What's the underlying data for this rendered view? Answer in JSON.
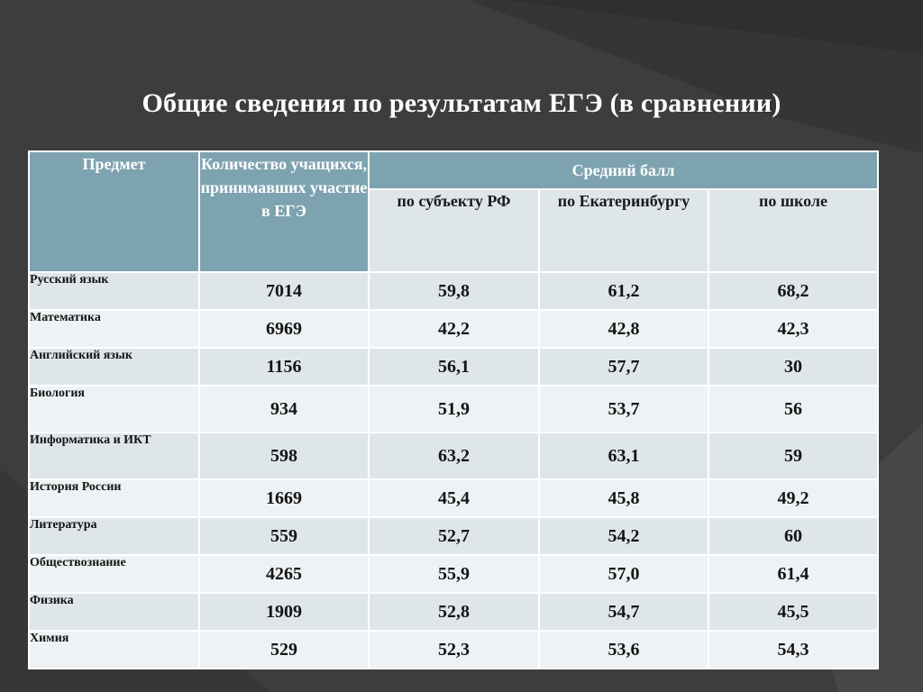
{
  "title": "Общие сведения по результатам ЕГЭ (в сравнении)",
  "table": {
    "headers": {
      "subject": "Предмет",
      "count": "Количество учащихся, принимавших участие в ЕГЭ",
      "avg_group": "Средний балл",
      "region": "по субъекту РФ",
      "city": "по Екатеринбургу",
      "school": "по школе"
    },
    "rows": [
      {
        "subject": "Русский язык",
        "count": "7014",
        "region": "59,8",
        "city": "61,2",
        "school": "68,2"
      },
      {
        "subject": "Математика",
        "count": "6969",
        "region": "42,2",
        "city": "42,8",
        "school": "42,3"
      },
      {
        "subject": "Английский язык",
        "count": "1156",
        "region": "56,1",
        "city": "57,7",
        "school": "30"
      },
      {
        "subject": "Биология",
        "count": "934",
        "region": "51,9",
        "city": "53,7",
        "school": "56"
      },
      {
        "subject": "Информатика и ИКТ",
        "count": "598",
        "region": "63,2",
        "city": "63,1",
        "school": "59"
      },
      {
        "subject": "История России",
        "count": "1669",
        "region": "45,4",
        "city": "45,8",
        "school": "49,2"
      },
      {
        "subject": "Литература",
        "count": "559",
        "region": "52,7",
        "city": "54,2",
        "school": "60"
      },
      {
        "subject": "Обществознание",
        "count": "4265",
        "region": "55,9",
        "city": "57,0",
        "school": "61,4"
      },
      {
        "subject": "Физика",
        "count": "1909",
        "region": "52,8",
        "city": "54,7",
        "school": "45,5"
      },
      {
        "subject": "Химия",
        "count": "529",
        "region": "52,3",
        "city": "53,6",
        "school": "54,3"
      }
    ]
  }
}
